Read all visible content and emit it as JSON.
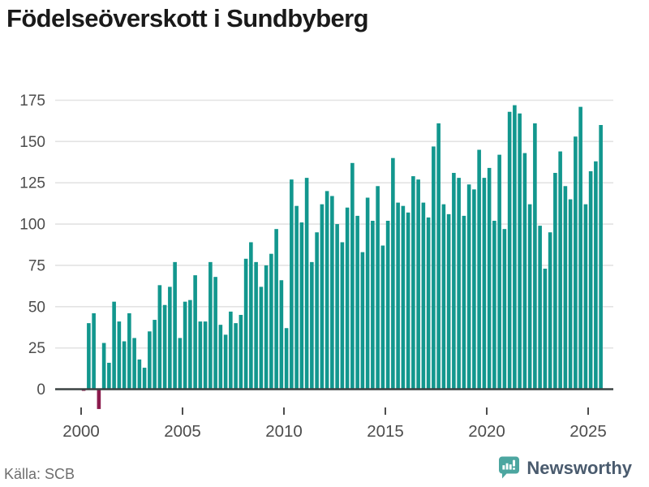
{
  "title": "Födelseöverskott i Sundbyberg",
  "source": "Källa: SCB",
  "branding": {
    "name": "Newsworthy"
  },
  "colors": {
    "bar_positive": "#12978E",
    "bar_negative": "#8B1B4D",
    "gridline": "#E3E3E3",
    "zero_line": "#3B4242",
    "axis_text": "#4D4D4D",
    "title_text": "#1A1A1A",
    "source_text": "#6E6E6E",
    "brand_text": "#4A5B6E",
    "brand_icon": "#4CA6A0"
  },
  "chart_data": {
    "type": "bar",
    "frequency": "quarterly",
    "x_start": {
      "year": 2000,
      "quarter": 1
    },
    "x_end": {
      "year": 2025,
      "quarter": 3
    },
    "title": "Födelseöverskott i Sundbyberg",
    "xlabel": "",
    "ylabel": "",
    "ylim": [
      -15,
      175
    ],
    "y_ticks": [
      0,
      25,
      50,
      75,
      100,
      125,
      150,
      175
    ],
    "x_tick_years": [
      2000,
      2005,
      2010,
      2015,
      2020,
      2025
    ],
    "x_tick_labels": [
      "2000",
      "2005",
      "2010",
      "2015",
      "2020",
      "2025"
    ],
    "grid": "horizontal",
    "legend": "none",
    "values": [
      -1,
      40,
      46,
      -12,
      28,
      16,
      53,
      41,
      29,
      46,
      31,
      18,
      13,
      35,
      42,
      63,
      51,
      62,
      77,
      31,
      53,
      54,
      69,
      41,
      41,
      77,
      68,
      39,
      33,
      47,
      40,
      45,
      79,
      89,
      77,
      62,
      75,
      82,
      97,
      66,
      37,
      127,
      111,
      101,
      128,
      77,
      95,
      112,
      120,
      117,
      100,
      89,
      110,
      137,
      105,
      83,
      116,
      102,
      123,
      87,
      102,
      140,
      113,
      111,
      107,
      129,
      127,
      113,
      104,
      147,
      161,
      112,
      106,
      131,
      128,
      105,
      124,
      121,
      145,
      128,
      134,
      102,
      142,
      97,
      168,
      172,
      167,
      143,
      112,
      161,
      99,
      73,
      95,
      131,
      144,
      123,
      115,
      153,
      171,
      112,
      132,
      138,
      160
    ]
  }
}
